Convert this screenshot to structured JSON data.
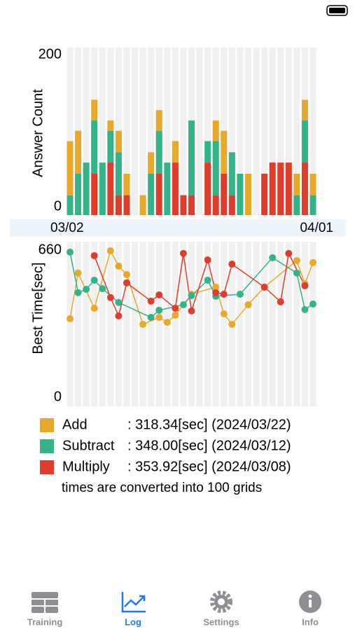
{
  "chart_data": [
    {
      "type": "bar",
      "stacked": true,
      "y_label": "Answer Count",
      "categories": [
        "03/02",
        null,
        null,
        null,
        null,
        null,
        null,
        null,
        null,
        null,
        null,
        null,
        null,
        null,
        null,
        null,
        null,
        null,
        null,
        null,
        null,
        null,
        null,
        null,
        null,
        null,
        null,
        null,
        null,
        null,
        "04/01"
      ],
      "series": [
        {
          "name": "Multiply",
          "color": "#e03c2c",
          "values": [
            null,
            null,
            null,
            52,
            null,
            66,
            25,
            25,
            null,
            null,
            null,
            52,
            null,
            66,
            25,
            25,
            null,
            66,
            25,
            52,
            25,
            null,
            null,
            null,
            52,
            66,
            66,
            66,
            null,
            66,
            null
          ]
        },
        {
          "name": "Subtract",
          "color": "#33b38a",
          "values": [
            25,
            52,
            66,
            67,
            66,
            40,
            54,
            null,
            null,
            null,
            52,
            54,
            66,
            null,
            null,
            94,
            null,
            27,
            68,
            null,
            54,
            52,
            null,
            null,
            null,
            null,
            null,
            null,
            25,
            53,
            25
          ]
        },
        {
          "name": "Add",
          "color": "#e8a92a",
          "values": [
            68,
            54,
            null,
            26,
            null,
            13,
            27,
            27,
            null,
            25,
            27,
            26,
            null,
            27,
            null,
            null,
            null,
            null,
            26,
            54,
            null,
            null,
            52,
            null,
            null,
            null,
            null,
            null,
            27,
            26,
            27
          ]
        }
      ],
      "ylim": [
        0,
        200
      ],
      "yticks": [
        0,
        200
      ]
    },
    {
      "type": "line",
      "y_label": "Best Time[sec]",
      "series": [
        {
          "name": "Add",
          "color": "#e8a92a",
          "values": [
            352,
            557,
            null,
            399,
            null,
            657,
            588,
            550,
            null,
            327,
            null,
            358,
            336,
            368,
            null,
            462,
            null,
            null,
            494,
            374,
            327,
            null,
            415,
            null,
            494,
            null,
            null,
            null,
            613,
            509,
            604
          ]
        },
        {
          "name": "Subtract",
          "color": "#33b38a",
          "values": [
            651,
            469,
            484,
            525,
            487,
            null,
            425,
            null,
            null,
            null,
            358,
            390,
            null,
            null,
            415,
            456,
            null,
            525,
            453,
            null,
            null,
            462,
            null,
            null,
            null,
            626,
            null,
            null,
            557,
            393,
            418
          ]
        },
        {
          "name": "Multiply",
          "color": "#e03c2c",
          "values": [
            null,
            null,
            null,
            635,
            null,
            447,
            365,
            513,
            null,
            null,
            431,
            459,
            null,
            399,
            645,
            387,
            null,
            616,
            469,
            462,
            597,
            null,
            null,
            null,
            494,
            null,
            428,
            645,
            null,
            500,
            null
          ]
        }
      ],
      "ylim": [
        0,
        660
      ],
      "yticks": [
        0,
        660
      ]
    }
  ],
  "legend": {
    "items": [
      {
        "best": ": 318.34[sec] (2024/03/22)"
      },
      {
        "best": ": 348.00[sec] (2024/03/12)"
      },
      {
        "best": ": 353.92[sec] (2024/03/08)"
      }
    ],
    "note": "times are converted into 100 grids"
  },
  "tab_bar": {
    "items": [
      "Training",
      "Log",
      "Settings",
      "Info"
    ],
    "active": 1,
    "active_color": "#1a7cf5",
    "color": "#8e8e93"
  }
}
